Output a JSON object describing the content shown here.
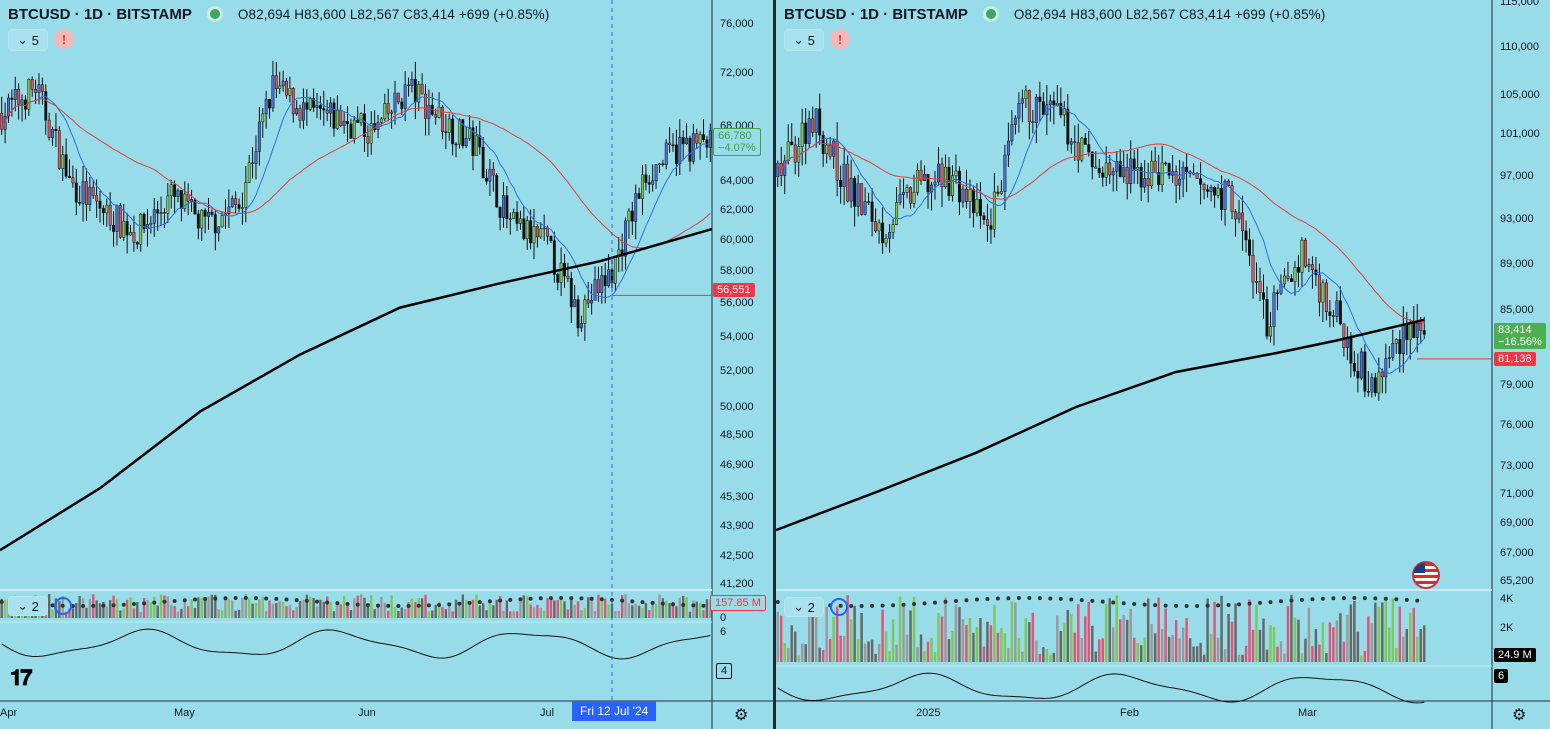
{
  "panels": {
    "left": {
      "symbol": "BTCUSD · 1D · BITSTAMP",
      "ohlc": "O82,694 H83,600 L82,567 C83,414 +699 (+0.85%)",
      "indicator_count": "5",
      "alert_mark": "!",
      "volume_count": "2",
      "price_ticks": [
        "76,000",
        "72,000",
        "68,000",
        "64,000",
        "62,000",
        "60,000",
        "58,000",
        "56,000",
        "54,000",
        "52,000",
        "50,000",
        "48,500",
        "46,900",
        "45,300",
        "43,900",
        "42,500",
        "41,200"
      ],
      "price_tag_ma": "66,780",
      "price_tag_ma_change": "−4.07%",
      "price_tag_red": "56,551",
      "volume_tag": "157.85 M",
      "volume_zero": "0",
      "osc_top": "6",
      "osc_val": "4",
      "time_labels": [
        "Apr",
        "May",
        "Jun",
        "Jul"
      ],
      "hover_date": "Fri 12 Jul '24"
    },
    "right": {
      "symbol": "BTCUSD · 1D · BITSTAMP",
      "ohlc": "O82,694 H83,600 L82,567 C83,414 +699 (+0.85%)",
      "indicator_count": "5",
      "alert_mark": "!",
      "volume_count": "2",
      "price_ticks": [
        "115,000",
        "110,000",
        "105,000",
        "101,000",
        "97,000",
        "93,000",
        "89,000",
        "85,000",
        "79,000",
        "76,000",
        "73,000",
        "71,000",
        "69,000",
        "67,000",
        "65,200"
      ],
      "price_tag_last": "83,414",
      "price_tag_last_change": "−16.56%",
      "price_tag_red": "81,138",
      "volume_ticks": [
        "4K",
        "2K"
      ],
      "volume_tag": "24.9 M",
      "osc_val": "6",
      "time_labels": [
        "2025",
        "Feb",
        "Mar"
      ]
    }
  },
  "colors": {
    "background": "#98dcea",
    "bull_green": "#7cc85a",
    "bull_blue": "#4a6fd8",
    "bear_red": "#e05555",
    "bear_black": "#111111",
    "ma_blue": "#2f6fe0",
    "ma_red": "#e0403a",
    "ma_black": "#000000",
    "tag_red": "#f23645",
    "tag_green": "#4caf50",
    "hover_blue": "#2962ff"
  },
  "icons": [
    "chevron-down-icon",
    "alert-icon",
    "gear-icon",
    "tradingview-logo",
    "us-flag-icon",
    "refresh-icon"
  ],
  "chart_data": [
    {
      "type": "candlestick",
      "title": "BTCUSD · 1D · BITSTAMP",
      "x_range": [
        "2024-03-26",
        "2024-08-02"
      ],
      "xticks": [
        "Apr",
        "May",
        "Jun",
        "Jul"
      ],
      "ylim": [
        41200,
        77000
      ],
      "y_scale": "log",
      "series": [
        {
          "name": "price",
          "approx_path": [
            [
              0,
              69000
            ],
            [
              10,
              71000
            ],
            [
              20,
              64000
            ],
            [
              30,
              62000
            ],
            [
              40,
              60500
            ],
            [
              50,
              63000
            ],
            [
              60,
              61000
            ],
            [
              70,
              62500
            ],
            [
              80,
              71000
            ],
            [
              90,
              69000
            ],
            [
              100,
              68500
            ],
            [
              110,
              67500
            ],
            [
              120,
              71000
            ],
            [
              130,
              68500
            ],
            [
              140,
              66500
            ],
            [
              150,
              61000
            ],
            [
              160,
              60000
            ],
            [
              170,
              55500
            ],
            [
              180,
              58000
            ],
            [
              190,
              64500
            ],
            [
              200,
              66500
            ],
            [
              209,
              66780
            ]
          ]
        },
        {
          "name": "ma_blue",
          "values_ref": "approx"
        },
        {
          "name": "ma_red",
          "values_ref": "approx"
        },
        {
          "name": "ma_black",
          "values_ref": "approx"
        }
      ],
      "last_marker": 56551
    },
    {
      "type": "candlestick",
      "title": "BTCUSD · 1D · BITSTAMP",
      "x_range": [
        "2024-12-05",
        "2025-03-27"
      ],
      "xticks": [
        "2025",
        "Feb",
        "Mar"
      ],
      "ylim": [
        65200,
        115000
      ],
      "y_scale": "log",
      "series": [
        {
          "name": "price",
          "approx_path": [
            [
              0,
              97000
            ],
            [
              10,
              103000
            ],
            [
              20,
              96000
            ],
            [
              30,
              92000
            ],
            [
              40,
              96000
            ],
            [
              50,
              97000
            ],
            [
              60,
              92000
            ],
            [
              70,
              104000
            ],
            [
              80,
              103000
            ],
            [
              90,
              98000
            ],
            [
              100,
              97000
            ],
            [
              110,
              97500
            ],
            [
              120,
              96000
            ],
            [
              130,
              95000
            ],
            [
              140,
              84000
            ],
            [
              150,
              90000
            ],
            [
              160,
              84500
            ],
            [
              170,
              78500
            ],
            [
              180,
              84000
            ],
            [
              185,
              83414
            ]
          ]
        }
      ],
      "last_marker": 81138,
      "last_price": 83414
    }
  ]
}
